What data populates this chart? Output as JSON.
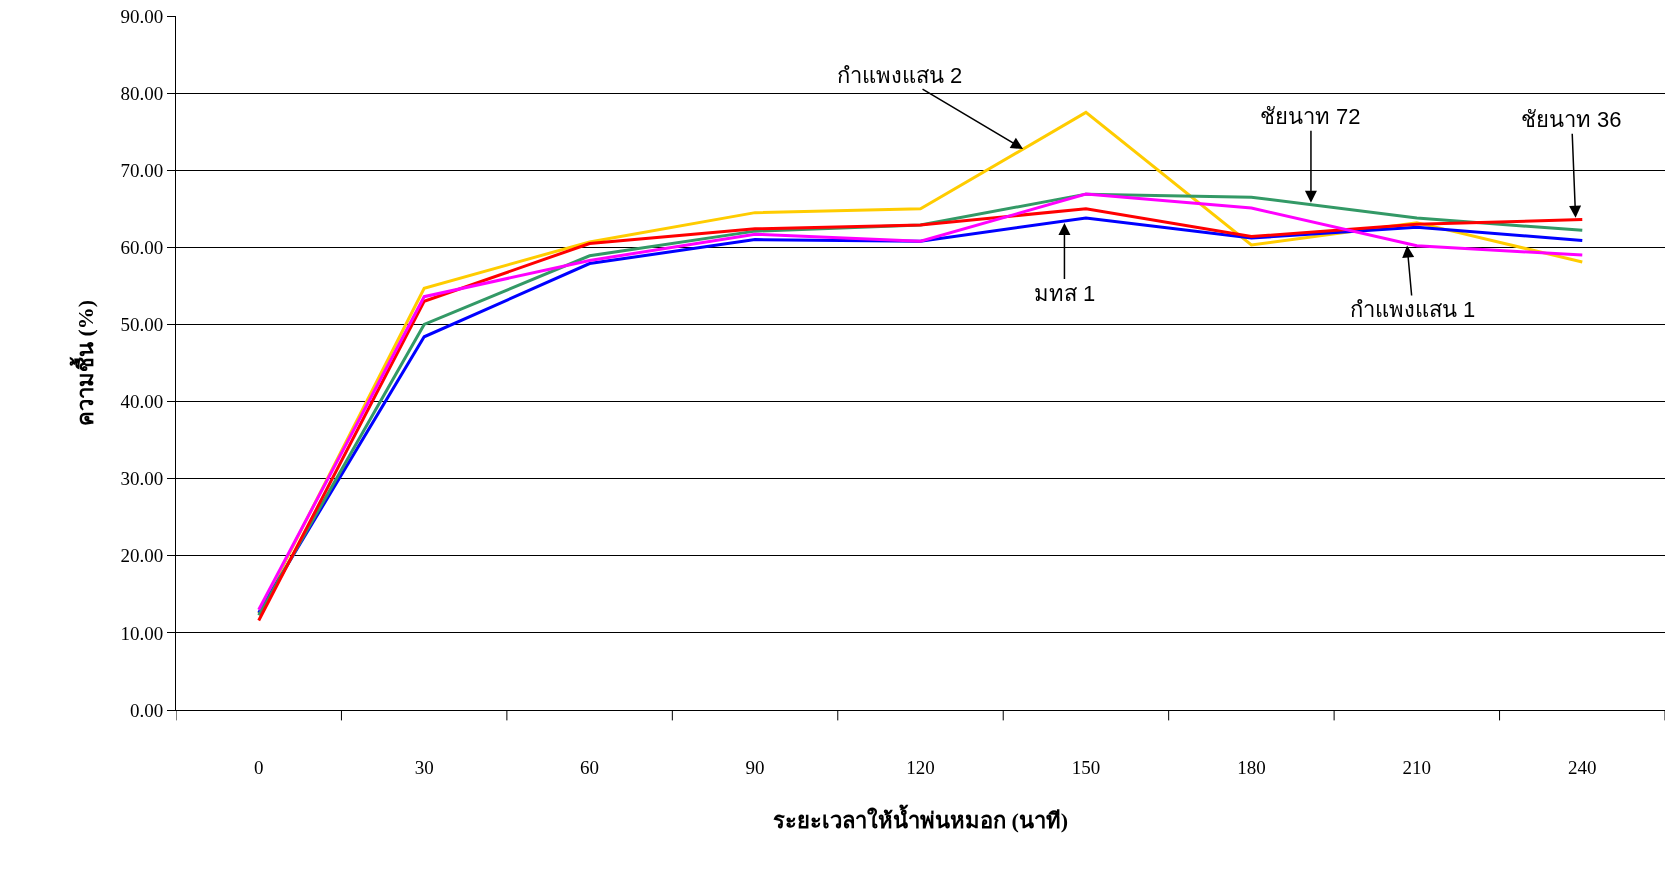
{
  "chart_data": {
    "type": "line",
    "xlabel": "ระยะเวลาให้น้ำพ่นหมอก (นาที)",
    "ylabel": "ความชื้น (%)",
    "categories": [
      "0",
      "30",
      "60",
      "90",
      "120",
      "150",
      "180",
      "210",
      "240"
    ],
    "series": [
      {
        "name": "กำแพงแสน 2",
        "color": "#ffcc00",
        "values": [
          12.5,
          54.7,
          60.7,
          64.5,
          65.0,
          77.5,
          60.3,
          63.2,
          58.1
        ]
      },
      {
        "name": "มทส 1",
        "color": "#0000ff",
        "values": [
          12.6,
          48.4,
          57.9,
          61.0,
          60.8,
          63.8,
          61.2,
          62.6,
          60.9
        ]
      },
      {
        "name": "ชัยนาท 72",
        "color": "#339966",
        "values": [
          12.3,
          50.0,
          58.9,
          62.1,
          62.9,
          66.9,
          66.5,
          63.8,
          62.2
        ]
      },
      {
        "name": "ชัยนาท 36",
        "color": "#ff0000",
        "values": [
          11.6,
          53.0,
          60.5,
          62.4,
          62.9,
          65.0,
          61.4,
          63.0,
          63.6
        ]
      },
      {
        "name": "กำแพงแสน 1",
        "color": "#ff00ff",
        "values": [
          13.0,
          53.6,
          58.3,
          61.7,
          60.8,
          66.9,
          65.1,
          60.2,
          59.0
        ]
      }
    ],
    "ylim": [
      0,
      90
    ],
    "yticks": [
      {
        "value": 0,
        "label": "0.00"
      },
      {
        "value": 10,
        "label": "10.00"
      },
      {
        "value": 20,
        "label": "20.00"
      },
      {
        "value": 30,
        "label": "30.00"
      },
      {
        "value": 40,
        "label": "40.00"
      },
      {
        "value": 50,
        "label": "50.00"
      },
      {
        "value": 60,
        "label": "60.00"
      },
      {
        "value": 70,
        "label": "70.00"
      },
      {
        "value": 80,
        "label": "80.00"
      },
      {
        "value": 90,
        "label": "90.00"
      }
    ],
    "grid": "y",
    "legend": false,
    "marker": "none",
    "line_style": "solid"
  }
}
